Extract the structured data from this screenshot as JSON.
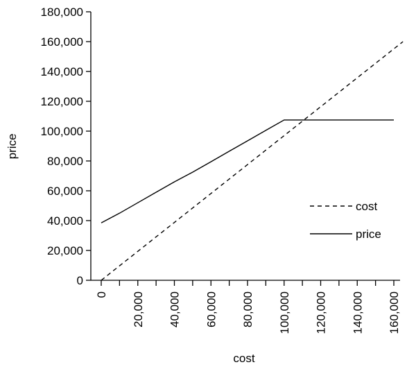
{
  "chart_data": {
    "type": "line",
    "xlabel": "cost",
    "ylabel": "price",
    "xlim": [
      -5000,
      165000
    ],
    "ylim": [
      0,
      180000
    ],
    "x_ticks": [
      0,
      20000,
      40000,
      60000,
      80000,
      100000,
      120000,
      140000,
      160000
    ],
    "x_tick_labels": [
      "0",
      "20,000",
      "40,000",
      "60,000",
      "80,000",
      "100,000",
      "120,000",
      "140,000",
      "160,000"
    ],
    "y_ticks": [
      0,
      20000,
      40000,
      60000,
      80000,
      100000,
      120000,
      140000,
      160000,
      180000
    ],
    "y_tick_labels": [
      "0",
      "20,000",
      "40,000",
      "60,000",
      "80,000",
      "100,000",
      "120,000",
      "140,000",
      "160,000",
      "180,000"
    ],
    "grid": false,
    "legend_position": "lower-right",
    "series": [
      {
        "name": "cost",
        "style": "dashed",
        "color": "#000000",
        "x": [
          0,
          165000
        ],
        "y": [
          0,
          160000
        ]
      },
      {
        "name": "price",
        "style": "solid",
        "color": "#000000",
        "x": [
          0,
          10000,
          20000,
          30000,
          40000,
          50000,
          60000,
          70000,
          80000,
          90000,
          100000,
          110000,
          120000,
          130000,
          140000,
          150000,
          160000
        ],
        "y": [
          38500,
          45000,
          52000,
          59000,
          66000,
          72500,
          79500,
          86500,
          93500,
          100500,
          107500,
          107500,
          107500,
          107500,
          107500,
          107500,
          107500
        ]
      }
    ]
  }
}
